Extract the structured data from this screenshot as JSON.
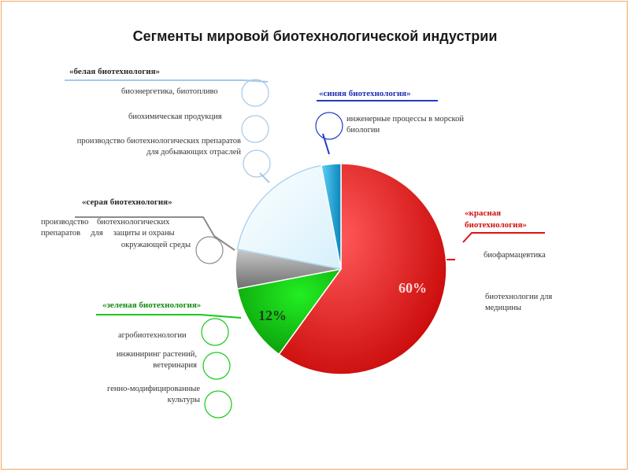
{
  "chart_data": {
    "type": "pie",
    "title": "Сегменты мировой биотехнологической индустрии",
    "series": [
      {
        "values": [
          60,
          12,
          6,
          19,
          3
        ],
        "data_labels": [
          "60%",
          "12%",
          "",
          "",
          ""
        ]
      }
    ],
    "colors": [
      "#e00d0d",
      "#12cc12",
      "#9a9a9a",
      "#e8f8ff",
      "#1aa8d8"
    ]
  },
  "segments": {
    "white": {
      "header": "«белая биотехнология»",
      "items": [
        "биоэнергетика, биотопливо",
        "биохимическая продукция",
        "производство биотехнологических препаратов",
        "для добывающих отраслей"
      ]
    },
    "blue": {
      "header": "«синяя биотехнология»",
      "items": [
        "инженерные процессы в морской",
        "биологии"
      ]
    },
    "grey": {
      "header": "«серая биотехнология»",
      "items": [
        "производство    биотехнологических",
        "препаратов     для     защиты и охраны",
        "окружающей среды"
      ]
    },
    "red": {
      "header_lines": [
        "«красная",
        "биотехнология»"
      ],
      "items": [
        "биофармацевтика",
        "биотехнологии для",
        "медицины"
      ]
    },
    "green": {
      "header": "«зеленая биотехнология»",
      "items": [
        "агробиотехнологии",
        "инжиниринг растений,",
        "ветеринария",
        "генно-модифицированные",
        "культуры"
      ]
    }
  }
}
